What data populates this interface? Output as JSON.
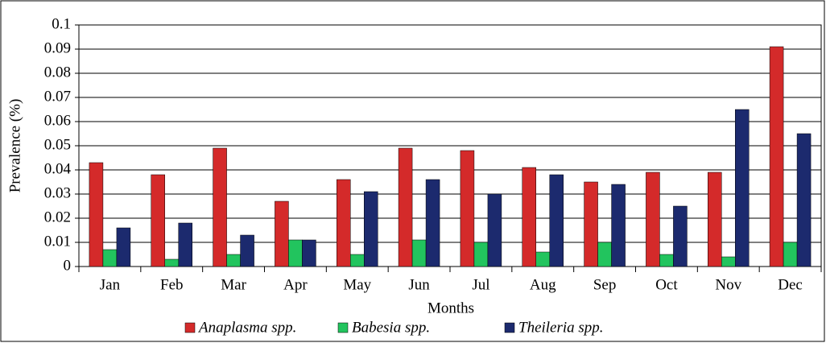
{
  "chart_data": {
    "type": "bar",
    "x_label": "Months",
    "y_label": "Prevalence (%)",
    "categories": [
      "Jan",
      "Feb",
      "Mar",
      "Apr",
      "May",
      "Jun",
      "Jul",
      "Aug",
      "Sep",
      "Oct",
      "Nov",
      "Dec"
    ],
    "series": [
      {
        "name": "Anaplasma spp.",
        "color": "#d42a2a",
        "values": [
          0.043,
          0.038,
          0.049,
          0.027,
          0.036,
          0.049,
          0.048,
          0.041,
          0.035,
          0.039,
          0.039,
          0.091
        ]
      },
      {
        "name": "Babesia spp.",
        "color": "#22c45e",
        "values": [
          0.007,
          0.003,
          0.005,
          0.011,
          0.005,
          0.011,
          0.01,
          0.006,
          0.01,
          0.005,
          0.004,
          0.01
        ]
      },
      {
        "name": "Theileria spp.",
        "color": "#1c2a6e",
        "values": [
          0.016,
          0.018,
          0.013,
          0.011,
          0.031,
          0.036,
          0.03,
          0.038,
          0.034,
          0.025,
          0.065,
          0.055
        ]
      }
    ],
    "ylim": [
      0,
      0.1
    ],
    "yticks": [
      0,
      0.01,
      0.02,
      0.03,
      0.04,
      0.05,
      0.06,
      0.07,
      0.08,
      0.09,
      0.1
    ],
    "grid": true,
    "legend": "bottom"
  }
}
